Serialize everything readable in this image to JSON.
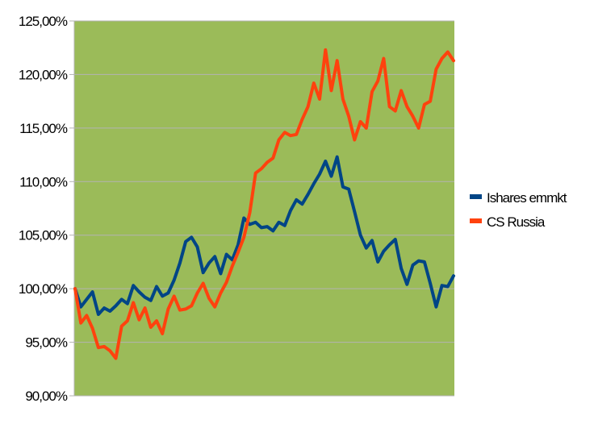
{
  "chart_data": {
    "type": "line",
    "title": "",
    "xlabel": "",
    "ylabel": "",
    "ylim": [
      90,
      125
    ],
    "yticks": [
      90,
      95,
      100,
      105,
      110,
      115,
      120,
      125
    ],
    "ytick_labels": [
      "90,00%",
      "95,00%",
      "100,00%",
      "105,00%",
      "110,00%",
      "115,00%",
      "120,00%",
      "125,00%"
    ],
    "x_axis_labels": "none",
    "grid": "horizontal",
    "plot_background": "#9bbb59",
    "legend_placement": "right",
    "series": [
      {
        "name": "Ishares emmkt",
        "color": "#004586",
        "values": [
          100.0,
          98.3,
          99.0,
          99.7,
          97.6,
          98.2,
          97.9,
          98.4,
          99.0,
          98.6,
          100.3,
          99.7,
          99.2,
          98.9,
          100.2,
          99.3,
          99.6,
          100.8,
          102.4,
          104.4,
          104.8,
          103.9,
          101.5,
          102.4,
          103.0,
          101.4,
          103.2,
          102.7,
          104.1,
          106.6,
          106.0,
          106.2,
          105.7,
          105.8,
          105.4,
          106.2,
          105.9,
          107.3,
          108.3,
          107.9,
          108.8,
          109.8,
          110.7,
          111.9,
          110.5,
          112.3,
          109.5,
          109.3,
          107.2,
          105.0,
          103.8,
          104.5,
          102.5,
          103.5,
          104.1,
          104.6,
          101.9,
          100.4,
          102.2,
          102.6,
          102.5,
          100.5,
          98.3,
          100.3,
          100.2,
          101.2
        ]
      },
      {
        "name": "CS Russia",
        "color": "#ff420e",
        "values": [
          100.0,
          96.8,
          97.5,
          96.3,
          94.5,
          94.6,
          94.2,
          93.5,
          96.5,
          97.0,
          98.7,
          97.1,
          98.2,
          96.4,
          97.0,
          95.8,
          98.1,
          99.3,
          98.0,
          98.1,
          98.4,
          99.6,
          100.5,
          99.1,
          98.3,
          99.6,
          100.6,
          102.1,
          103.4,
          104.8,
          107.1,
          110.8,
          111.2,
          111.8,
          112.2,
          113.9,
          114.6,
          114.3,
          114.4,
          115.8,
          117.0,
          119.2,
          117.7,
          122.3,
          118.5,
          121.3,
          117.7,
          116.1,
          113.9,
          115.6,
          115.0,
          118.4,
          119.4,
          121.5,
          117.0,
          116.6,
          118.5,
          117.0,
          116.1,
          115.0,
          117.2,
          117.5,
          120.5,
          121.5,
          122.1,
          121.3
        ]
      }
    ]
  }
}
